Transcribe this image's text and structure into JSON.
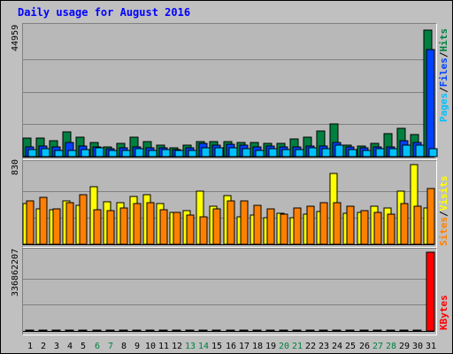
{
  "title": "Daily usage for August 2016",
  "colors": {
    "hits": "#008040",
    "files": "#0040ff",
    "pages": "#00c0ff",
    "visits": "#ffff00",
    "sites": "#ff8000",
    "kbytes": "#ff0000",
    "weekend_label": "#008040",
    "weekday_label": "#000000",
    "background": "#c0c0c0",
    "plot": "#b8b8b8"
  },
  "legend_hits": {
    "pages": "Pages",
    "sep1": "/",
    "files": "Files",
    "sep2": "/",
    "hits": "Hits"
  },
  "legend_visits": {
    "sites": "Sites",
    "sep": "/",
    "visits": "Visits"
  },
  "legend_kbytes": {
    "kbytes": "KBytes"
  },
  "chart_data": [
    {
      "type": "bar",
      "title": "Daily usage for August 2016",
      "ymax_label": "44959",
      "ylim": [
        0,
        44959
      ],
      "categories": [
        "1",
        "2",
        "3",
        "4",
        "5",
        "6",
        "7",
        "8",
        "9",
        "10",
        "11",
        "12",
        "13",
        "14",
        "15",
        "16",
        "17",
        "18",
        "19",
        "20",
        "21",
        "22",
        "23",
        "24",
        "25",
        "26",
        "27",
        "28",
        "29",
        "30",
        "31"
      ],
      "weekend_days": [
        6,
        7,
        13,
        14,
        20,
        21,
        27,
        28
      ],
      "series": [
        {
          "name": "Hits",
          "values": [
            6500,
            6300,
            5500,
            8500,
            6800,
            4800,
            3500,
            4600,
            6800,
            5200,
            4000,
            3200,
            4000,
            5200,
            5100,
            5300,
            4800,
            4800,
            4700,
            4700,
            6200,
            6800,
            8800,
            11300,
            4000,
            3800,
            4600,
            7800,
            9700,
            7500,
            43800
          ]
        },
        {
          "name": "Files",
          "values": [
            3400,
            3800,
            3400,
            4800,
            3600,
            3400,
            2600,
            3200,
            3500,
            3000,
            3100,
            2500,
            3000,
            4600,
            4100,
            4300,
            3900,
            3500,
            3600,
            3500,
            3400,
            3800,
            3700,
            4800,
            3400,
            3100,
            3400,
            3500,
            5400,
            4900,
            37000
          ]
        },
        {
          "name": "Pages",
          "values": [
            2500,
            2800,
            2200,
            2200,
            2400,
            3000,
            2000,
            2200,
            2600,
            2200,
            2400,
            2100,
            2000,
            3100,
            3200,
            3200,
            2900,
            2200,
            2700,
            2500,
            2500,
            3000,
            2800,
            4100,
            2500,
            2100,
            2700,
            2600,
            4000,
            3900,
            2700
          ]
        }
      ]
    },
    {
      "type": "bar",
      "ymax_label": "830",
      "ylim": [
        0,
        830
      ],
      "categories": [
        "1",
        "2",
        "3",
        "4",
        "5",
        "6",
        "7",
        "8",
        "9",
        "10",
        "11",
        "12",
        "13",
        "14",
        "15",
        "16",
        "17",
        "18",
        "19",
        "20",
        "21",
        "22",
        "23",
        "24",
        "25",
        "26",
        "27",
        "28",
        "29",
        "30",
        "31"
      ],
      "series": [
        {
          "name": "Visits",
          "values": [
            420,
            370,
            360,
            450,
            410,
            600,
            440,
            430,
            500,
            520,
            420,
            330,
            350,
            550,
            400,
            510,
            290,
            300,
            280,
            320,
            280,
            310,
            340,
            740,
            320,
            330,
            400,
            380,
            550,
            830,
            380
          ]
        },
        {
          "name": "Sites",
          "values": [
            450,
            490,
            370,
            430,
            520,
            360,
            350,
            380,
            420,
            430,
            360,
            330,
            300,
            290,
            370,
            450,
            450,
            410,
            370,
            310,
            380,
            400,
            430,
            430,
            400,
            350,
            330,
            310,
            420,
            400,
            580
          ]
        }
      ]
    },
    {
      "type": "bar",
      "ymax_label": "336862207",
      "ylim": [
        0,
        336862207
      ],
      "categories": [
        "1",
        "2",
        "3",
        "4",
        "5",
        "6",
        "7",
        "8",
        "9",
        "10",
        "11",
        "12",
        "13",
        "14",
        "15",
        "16",
        "17",
        "18",
        "19",
        "20",
        "21",
        "22",
        "23",
        "24",
        "25",
        "26",
        "27",
        "28",
        "29",
        "30",
        "31"
      ],
      "series": [
        {
          "name": "KBytes",
          "values": [
            3500000,
            3400000,
            3200000,
            3600000,
            3300000,
            3100000,
            2900000,
            3000000,
            3400000,
            3200000,
            3100000,
            2900000,
            2800000,
            3500000,
            3300000,
            3400000,
            3200000,
            3100000,
            3000000,
            3100000,
            2900000,
            3200000,
            3300000,
            3900000,
            3100000,
            3000000,
            2900000,
            3000000,
            3600000,
            3800000,
            336862207
          ]
        }
      ]
    }
  ]
}
